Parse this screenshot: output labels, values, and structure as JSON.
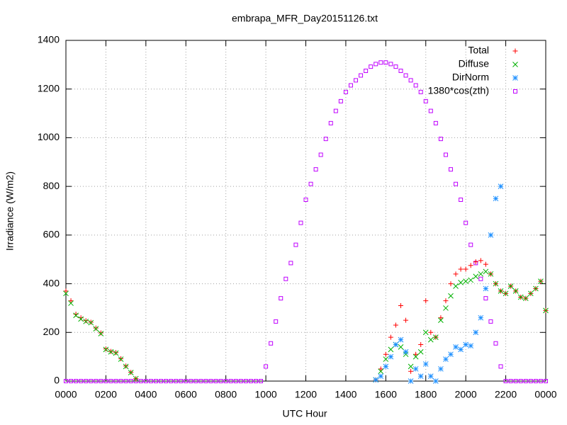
{
  "chart_data": {
    "type": "scatter",
    "title": "embrapa_MFR_Day20151126.txt",
    "xlabel": "UTC Hour",
    "ylabel": "Irradiance (W/m2)",
    "xlim": [
      0,
      24
    ],
    "ylim": [
      0,
      1400
    ],
    "xticks": [
      {
        "value": 0,
        "label": "0000"
      },
      {
        "value": 2,
        "label": "0200"
      },
      {
        "value": 4,
        "label": "0400"
      },
      {
        "value": 6,
        "label": "0600"
      },
      {
        "value": 8,
        "label": "0800"
      },
      {
        "value": 10,
        "label": "1000"
      },
      {
        "value": 12,
        "label": "1200"
      },
      {
        "value": 14,
        "label": "1400"
      },
      {
        "value": 16,
        "label": "1600"
      },
      {
        "value": 18,
        "label": "1800"
      },
      {
        "value": 20,
        "label": "2000"
      },
      {
        "value": 22,
        "label": "2200"
      },
      {
        "value": 24,
        "label": "0000"
      }
    ],
    "yticks": [
      0,
      200,
      400,
      600,
      800,
      1000,
      1200,
      1400
    ],
    "grid": true,
    "legend": "top-right",
    "x": [
      0,
      0.25,
      0.5,
      0.75,
      1,
      1.25,
      1.5,
      1.75,
      2,
      2.25,
      2.5,
      2.75,
      3,
      3.25,
      3.5,
      3.75,
      4,
      4.25,
      4.5,
      4.75,
      5,
      5.25,
      5.5,
      5.75,
      6,
      6.25,
      6.5,
      6.75,
      7,
      7.25,
      7.5,
      7.75,
      8,
      8.25,
      8.5,
      8.75,
      9,
      9.25,
      9.5,
      9.75,
      10,
      10.25,
      10.5,
      10.75,
      11,
      11.25,
      11.5,
      11.75,
      12,
      12.25,
      12.5,
      12.75,
      13,
      13.25,
      13.5,
      13.75,
      14,
      14.25,
      14.5,
      14.75,
      15,
      15.25,
      15.5,
      15.75,
      16,
      16.25,
      16.5,
      16.75,
      17,
      17.25,
      17.5,
      17.75,
      18,
      18.25,
      18.5,
      18.75,
      19,
      19.25,
      19.5,
      19.75,
      20,
      20.25,
      20.5,
      20.75,
      21,
      21.25,
      21.5,
      21.75,
      22,
      22.25,
      22.5,
      22.75,
      23,
      23.25,
      23.5,
      23.75,
      24
    ],
    "series": [
      {
        "name": "Total",
        "color": "#ff0000",
        "marker": "plus",
        "values": [
          370,
          330,
          275,
          260,
          248,
          242,
          218,
          198,
          132,
          122,
          117,
          92,
          62,
          36,
          10,
          null,
          null,
          null,
          null,
          null,
          null,
          null,
          null,
          null,
          null,
          null,
          null,
          null,
          null,
          null,
          null,
          null,
          null,
          null,
          null,
          null,
          null,
          null,
          null,
          null,
          null,
          null,
          null,
          null,
          null,
          null,
          null,
          null,
          null,
          null,
          null,
          null,
          null,
          null,
          null,
          null,
          null,
          null,
          null,
          null,
          null,
          null,
          5,
          50,
          110,
          180,
          230,
          310,
          250,
          40,
          110,
          150,
          330,
          200,
          180,
          260,
          330,
          400,
          440,
          460,
          460,
          475,
          490,
          495,
          480,
          440,
          400,
          370,
          360,
          390,
          370,
          345,
          340,
          360,
          380,
          410,
          290
        ]
      },
      {
        "name": "Diffuse",
        "color": "#00b000",
        "marker": "cross",
        "values": [
          360,
          320,
          270,
          255,
          245,
          240,
          215,
          195,
          130,
          120,
          115,
          90,
          60,
          35,
          10,
          null,
          null,
          null,
          null,
          null,
          null,
          null,
          null,
          null,
          null,
          null,
          null,
          null,
          null,
          null,
          null,
          null,
          null,
          null,
          null,
          null,
          null,
          null,
          null,
          null,
          null,
          null,
          null,
          null,
          null,
          null,
          null,
          null,
          null,
          null,
          null,
          null,
          null,
          null,
          null,
          null,
          null,
          null,
          null,
          null,
          null,
          null,
          5,
          40,
          90,
          130,
          150,
          140,
          110,
          60,
          100,
          120,
          200,
          170,
          180,
          250,
          300,
          350,
          390,
          405,
          410,
          415,
          430,
          440,
          450,
          440,
          400,
          370,
          360,
          390,
          370,
          345,
          340,
          360,
          380,
          410,
          290
        ]
      },
      {
        "name": "DirNorm",
        "color": "#1e90ff",
        "marker": "star",
        "values": [
          null,
          null,
          null,
          null,
          null,
          null,
          null,
          null,
          null,
          null,
          null,
          null,
          null,
          null,
          null,
          null,
          null,
          null,
          null,
          null,
          null,
          null,
          null,
          null,
          null,
          null,
          null,
          null,
          null,
          null,
          null,
          null,
          null,
          null,
          null,
          null,
          null,
          null,
          null,
          null,
          null,
          null,
          null,
          null,
          null,
          null,
          null,
          null,
          null,
          null,
          null,
          null,
          null,
          null,
          null,
          null,
          null,
          null,
          null,
          null,
          null,
          null,
          5,
          20,
          60,
          100,
          150,
          170,
          120,
          0,
          50,
          20,
          70,
          20,
          0,
          50,
          90,
          110,
          140,
          130,
          150,
          145,
          200,
          260,
          380,
          600,
          750,
          800,
          null,
          null,
          null,
          null,
          null,
          null,
          null,
          null,
          null
        ]
      },
      {
        "name": "1380*cos(zth)",
        "color": "#c000ff",
        "marker": "square",
        "values": [
          0,
          0,
          0,
          0,
          0,
          0,
          0,
          0,
          0,
          0,
          0,
          0,
          0,
          0,
          0,
          0,
          0,
          0,
          0,
          0,
          0,
          0,
          0,
          0,
          0,
          0,
          0,
          0,
          0,
          0,
          0,
          0,
          0,
          0,
          0,
          0,
          0,
          0,
          0,
          0,
          60,
          155,
          245,
          340,
          420,
          485,
          560,
          650,
          745,
          810,
          870,
          930,
          995,
          1060,
          1110,
          1150,
          1188,
          1215,
          1236,
          1256,
          1275,
          1292,
          1303,
          1309,
          1309,
          1303,
          1292,
          1275,
          1256,
          1236,
          1215,
          1188,
          1150,
          1110,
          1060,
          995,
          930,
          870,
          810,
          745,
          650,
          560,
          485,
          420,
          340,
          245,
          155,
          60,
          0,
          0,
          0,
          0,
          0,
          0,
          0,
          0,
          0
        ]
      }
    ]
  }
}
